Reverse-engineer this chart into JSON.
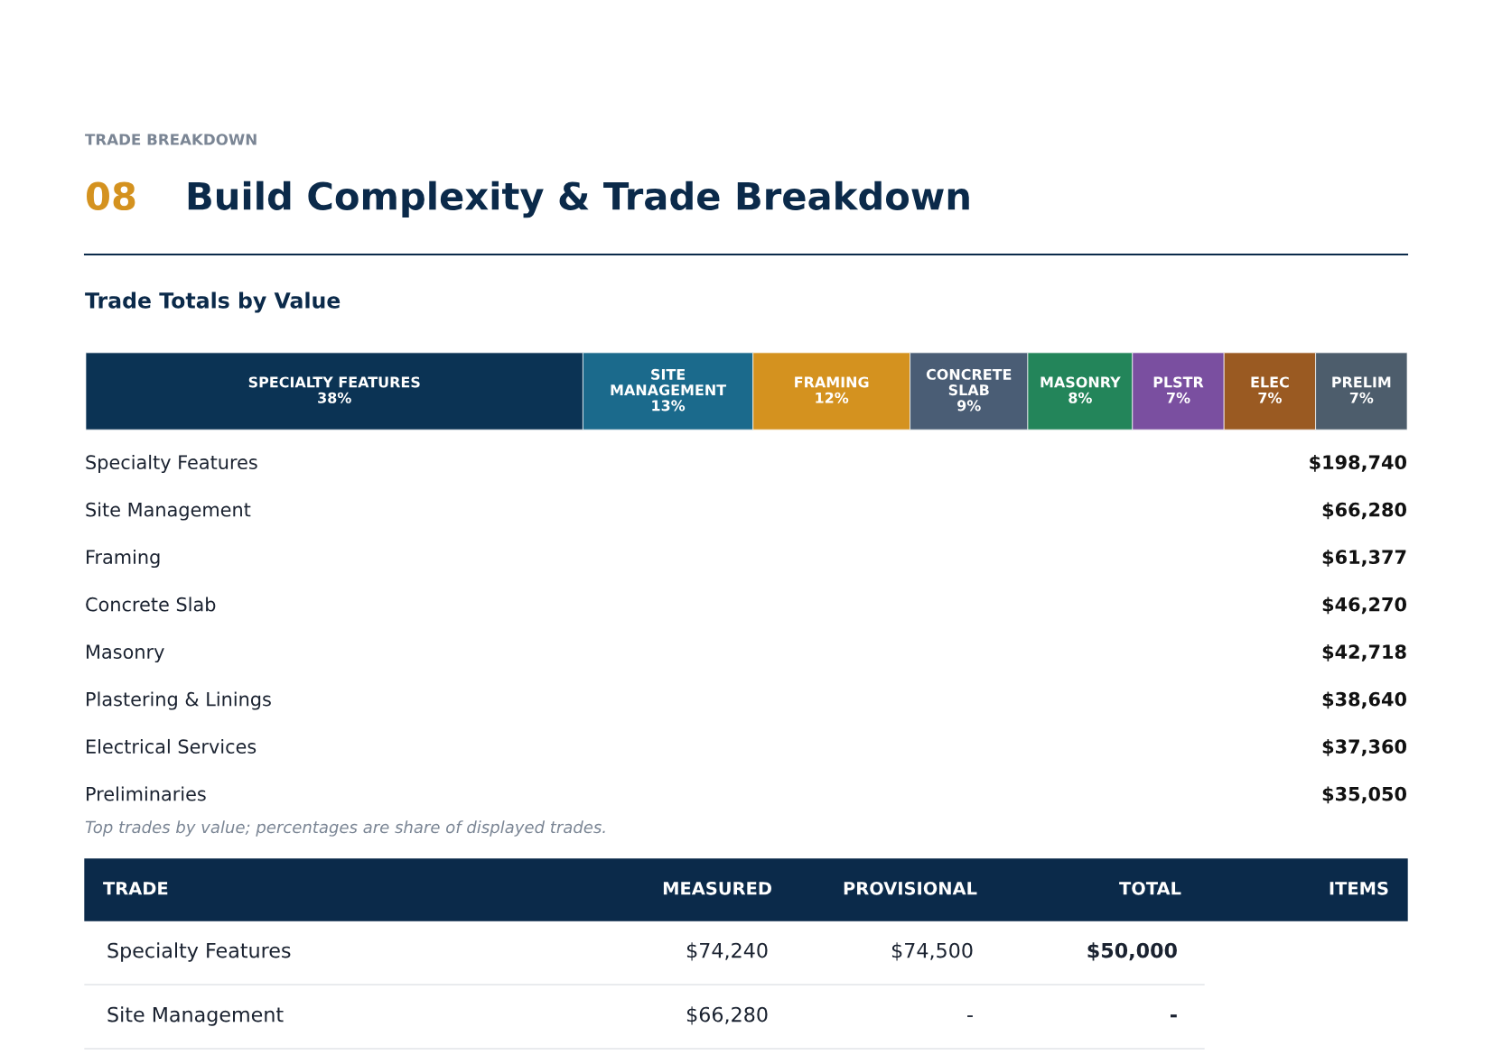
{
  "chart_data": [
    {
      "type": "bar",
      "orientation": "horizontal",
      "stacked": true,
      "title": "Build Complexity & Trade Breakdown",
      "subtitle": "Trade Totals by Value",
      "categories": [
        null
      ],
      "series": [
        {
          "name": "SPECIALTY FEATURES",
          "color": "#0b3354",
          "values": [
            38
          ],
          "value_labels": [
            "38%"
          ]
        },
        {
          "name": "SITE\nMANAGEMENT",
          "color": "#1b6a8c",
          "values": [
            13
          ],
          "value_labels": [
            "13%"
          ]
        },
        {
          "name": "FRAMING",
          "color": "#d4921f",
          "values": [
            12
          ],
          "value_labels": [
            "12%"
          ]
        },
        {
          "name": "CONCRETE\nSLAB",
          "color": "#4a5d75",
          "values": [
            9
          ],
          "value_labels": [
            "9%"
          ]
        },
        {
          "name": "MASONRY",
          "color": "#23855a",
          "values": [
            8
          ],
          "value_labels": [
            "8%"
          ]
        },
        {
          "name": "PLSTR",
          "color": "#7a4fa0",
          "values": [
            7
          ],
          "value_labels": [
            "7%"
          ]
        },
        {
          "name": "ELEC",
          "color": "#9a5a22",
          "values": [
            7
          ],
          "value_labels": [
            "7%"
          ]
        },
        {
          "name": "PRELIM",
          "color": "#4d5d6c",
          "values": [
            7
          ],
          "value_labels": [
            "7%"
          ]
        }
      ],
      "annotations": [
        "TRADE BREAKDOWN",
        "08"
      ]
    },
    {
      "type": "other",
      "y_categories": [
        "Specialty Features",
        "Site Management",
        "Framing",
        "Concrete Slab",
        "Masonry",
        "Plastering & Linings",
        "Electrical Services",
        "Preliminaries"
      ],
      "cell_labels": [
        [
          "$198,740"
        ],
        [
          "$66,280"
        ],
        [
          "$61,377"
        ],
        [
          "$46,270"
        ],
        [
          "$42,718"
        ],
        [
          "$38,640"
        ],
        [
          "$37,360"
        ],
        [
          "$35,050"
        ]
      ],
      "annotations": [
        "Top trades by value; percentages are share of displayed trades."
      ]
    },
    {
      "type": "other",
      "ylabel": "TRADE",
      "categories": [
        "MEASURED",
        "PROVISIONAL",
        "TOTAL",
        "ITEMS"
      ],
      "y_categories": [
        "Specialty Features",
        "Site Management"
      ],
      "cell_labels": [
        [
          "$74,240",
          "$74,500",
          "$50,000",
          null
        ],
        [
          "$66,280",
          "-",
          "-",
          null
        ]
      ]
    }
  ]
}
